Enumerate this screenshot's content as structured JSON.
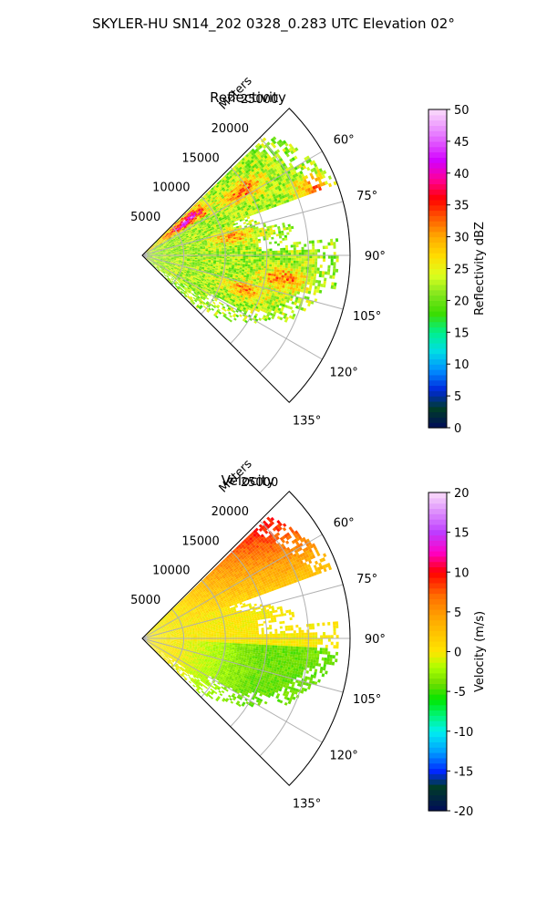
{
  "figure": {
    "title": "SKYLER-HU  SN14_202  0328_0.283 UTC Elevation 02°"
  },
  "chart_data": [
    {
      "type": "heatmap",
      "subtype": "polar-sector",
      "title": "Reflectivity",
      "range_label": "Meters",
      "range_ticks": [
        5000,
        10000,
        15000,
        20000,
        25000
      ],
      "range_max": 25000,
      "azimuth_ticks_deg": [
        60,
        75,
        90,
        105,
        120,
        135
      ],
      "azimuth_range_deg": [
        45,
        135
      ],
      "grid": true,
      "colorbar": {
        "label": "Reflectivity dBZ",
        "min": 0,
        "max": 50,
        "ticks": [
          0,
          5,
          10,
          15,
          20,
          25,
          30,
          35,
          40,
          45,
          50
        ]
      },
      "echo_summary": {
        "background_values": [
          18,
          26
        ],
        "cores": [
          {
            "azimuth_deg": 52,
            "range_m": 6500,
            "value": 38
          },
          {
            "azimuth_deg": 57,
            "range_m": 14000,
            "value": 33
          },
          {
            "azimuth_deg": 68,
            "range_m": 22000,
            "value": 31
          },
          {
            "azimuth_deg": 78,
            "range_m": 11000,
            "value": 30
          },
          {
            "azimuth_deg": 99,
            "range_m": 17000,
            "value": 32
          },
          {
            "azimuth_deg": 108,
            "range_m": 13000,
            "value": 31
          }
        ]
      }
    },
    {
      "type": "heatmap",
      "subtype": "polar-sector",
      "title": "Velocity",
      "range_label": "Meters",
      "range_ticks": [
        5000,
        10000,
        15000,
        20000,
        25000
      ],
      "range_max": 25000,
      "azimuth_ticks_deg": [
        60,
        75,
        90,
        105,
        120,
        135
      ],
      "azimuth_range_deg": [
        45,
        135
      ],
      "grid": true,
      "colorbar": {
        "label": "Velocity (m/s)",
        "min": -20,
        "max": 20,
        "ticks": [
          -20,
          -15,
          -10,
          -5,
          0,
          5,
          10,
          15,
          20
        ]
      },
      "field_summary": {
        "north_sector_value": 10,
        "center_value": 0,
        "south_sector_value": -4
      }
    }
  ]
}
